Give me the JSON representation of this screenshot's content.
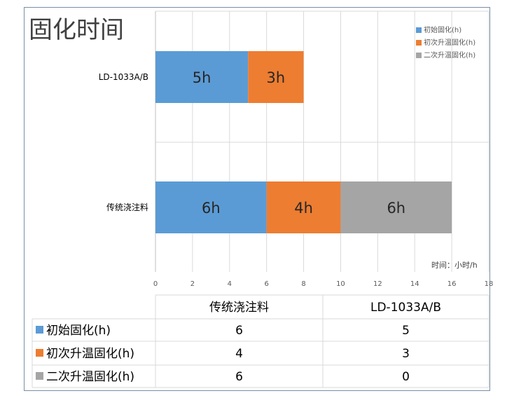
{
  "chart_data": {
    "type": "bar",
    "orientation": "horizontal",
    "stacked": true,
    "title": "固化时间",
    "categories": [
      "传统浇注料",
      "LD-1033A/B"
    ],
    "series": [
      {
        "name": "初始固化(h)",
        "values": [
          6,
          5
        ],
        "color": "#5b9bd5"
      },
      {
        "name": "初次升温固化(h)",
        "values": [
          4,
          3
        ],
        "color": "#ed7d31"
      },
      {
        "name": "二次升温固化(h)",
        "values": [
          6,
          0
        ],
        "color": "#a5a5a5"
      }
    ],
    "bar_value_suffix": "h",
    "xlim": [
      0,
      18
    ],
    "xticks": [
      0,
      2,
      4,
      6,
      8,
      10,
      12,
      14,
      16,
      18
    ],
    "xlabel": "时间：小时/h",
    "grid": true,
    "legend_position": "top-right",
    "data_table": true
  }
}
